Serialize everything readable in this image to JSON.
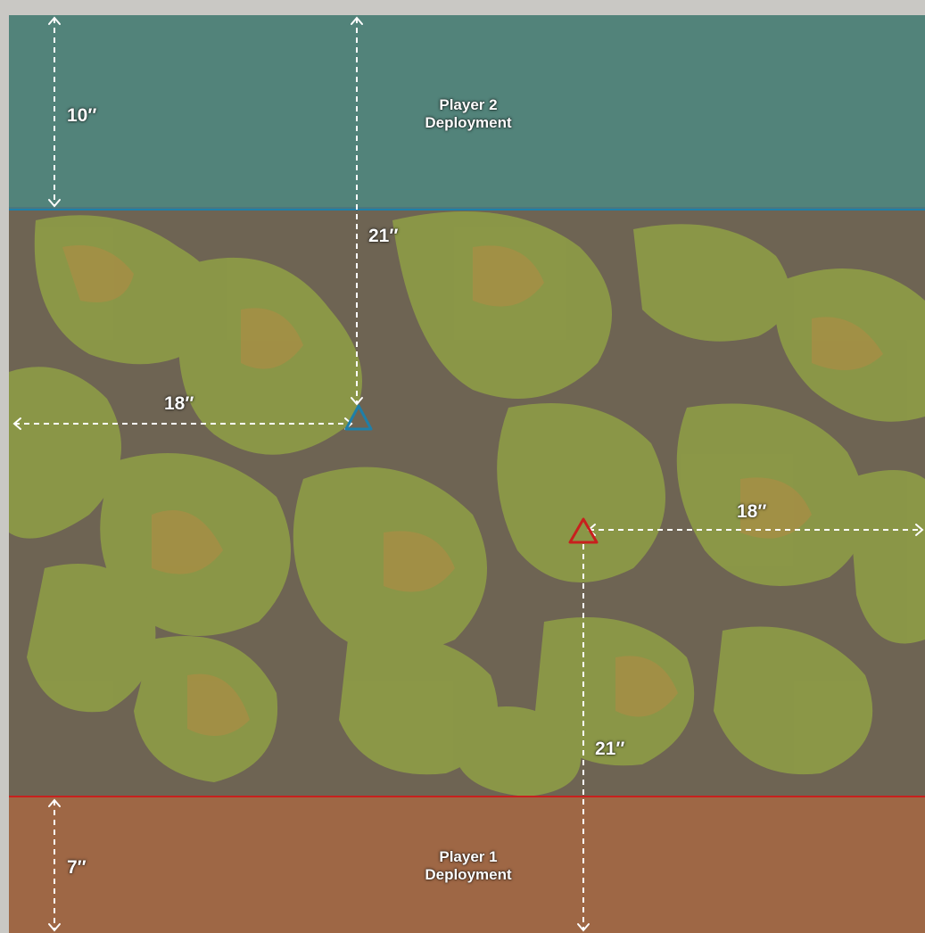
{
  "zones": {
    "player2": {
      "line1": "Player 2",
      "line2": "Deployment",
      "color": "#1f7fa8"
    },
    "player1": {
      "line1": "Player 1",
      "line2": "Deployment",
      "color": "#c8201e"
    }
  },
  "measurements": {
    "p2_depth": "10″",
    "p2_objective_from_top": "21″",
    "p2_objective_from_left": "18″",
    "p1_objective_from_right": "18″",
    "p1_objective_from_bottom": "21″",
    "p1_depth": "7″"
  },
  "objectives": {
    "blue": {
      "icon": "blue-triangle-objective",
      "color": "#1f7fa8"
    },
    "red": {
      "icon": "red-triangle-objective",
      "color": "#c8201e"
    }
  },
  "terrain": {
    "earth": "#6f6656",
    "grass": "#8a9a45",
    "ochre": "#b8893f"
  }
}
